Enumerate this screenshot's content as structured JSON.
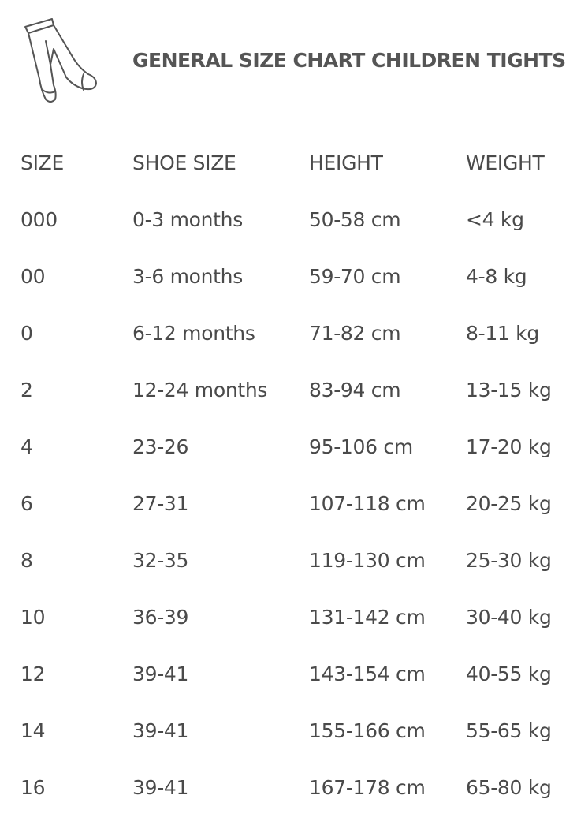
{
  "header": {
    "title": "GENERAL SIZE CHART CHILDREN TIGHTS"
  },
  "table": {
    "columns": [
      "SIZE",
      "SHOE SIZE",
      "HEIGHT",
      "WEIGHT"
    ],
    "rows": [
      [
        "000",
        "0-3 months",
        "50-58 cm",
        "<4 kg"
      ],
      [
        "00",
        "3-6 months",
        "59-70 cm",
        "4-8 kg"
      ],
      [
        "0",
        "6-12 months",
        "71-82 cm",
        "8-11 kg"
      ],
      [
        "2",
        "12-24 months",
        "83-94 cm",
        "13-15 kg"
      ],
      [
        "4",
        "23-26",
        "95-106 cm",
        "17-20 kg"
      ],
      [
        "6",
        "27-31",
        "107-118 cm",
        "20-25 kg"
      ],
      [
        "8",
        "32-35",
        "119-130 cm",
        "25-30 kg"
      ],
      [
        "10",
        "36-39",
        "131-142 cm",
        "30-40 kg"
      ],
      [
        "12",
        "39-41",
        "143-154 cm",
        "40-55 kg"
      ],
      [
        "14",
        "39-41",
        "155-166 cm",
        "55-65 kg"
      ],
      [
        "16",
        "39-41",
        "167-178 cm",
        "65-80 kg"
      ]
    ]
  }
}
